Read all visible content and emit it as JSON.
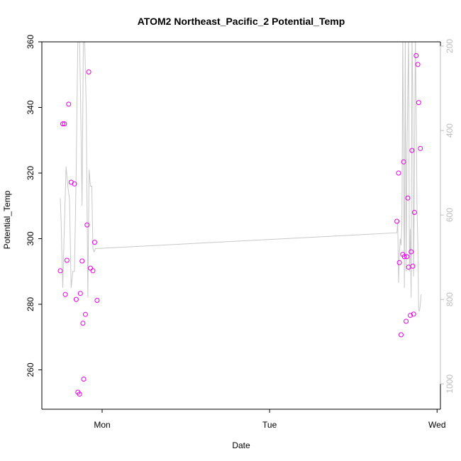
{
  "chart_data": {
    "type": "scatter",
    "title": "ATOM2 Northeast_Pacific_2 Potential_Temp",
    "xlabel": "Date",
    "ylabel": "Potential_Temp",
    "x_ticks": [
      "Mon",
      "Tue",
      "Wed"
    ],
    "ylim": [
      248,
      360
    ],
    "y_ticks": [
      260,
      280,
      300,
      320,
      340,
      360
    ],
    "y2_ticks": [
      200,
      400,
      600,
      800,
      1000
    ],
    "y2lim": [
      190,
      1060
    ],
    "xlim": [
      -0.36,
      2.02
    ],
    "colors": {
      "points": "#e600e6",
      "line": "#c8c8c8",
      "axis": "#000000",
      "right_axis": "#bdbdbd"
    },
    "series": [
      {
        "kind": "points",
        "x": [
          -0.25,
          -0.235,
          -0.225,
          -0.22,
          -0.21,
          -0.2,
          -0.185,
          -0.165,
          -0.155,
          -0.145,
          -0.135,
          -0.13,
          -0.12,
          -0.115,
          -0.11,
          -0.1,
          -0.09,
          -0.08,
          -0.07,
          -0.055,
          -0.045,
          -0.03,
          1.76,
          1.77,
          1.775,
          1.785,
          1.795,
          1.8,
          1.805,
          1.815,
          1.82,
          1.825,
          1.83,
          1.84,
          1.845,
          1.85,
          1.855,
          1.86,
          1.865,
          1.875,
          1.885,
          1.89,
          1.9
        ],
        "y": [
          290.2,
          335,
          335,
          283,
          293.4,
          341,
          317.2,
          316.7,
          281.5,
          253.2,
          252.6,
          283.3,
          293.2,
          274.2,
          257.2,
          276.9,
          304.2,
          350.8,
          291,
          290.2,
          298.9,
          281.2,
          305.3,
          320,
          292.7,
          270.7,
          295.2,
          323.4,
          294.5,
          274.8,
          294.5,
          312.4,
          291.3,
          276.6,
          296,
          326.9,
          291.6,
          277,
          308,
          355.8,
          353.1,
          341.5,
          327.5
        ]
      },
      {
        "kind": "line",
        "x": [
          -0.25,
          -0.245,
          -0.235,
          -0.225,
          -0.215,
          -0.205,
          -0.195,
          -0.185,
          -0.175,
          -0.165,
          -0.155,
          -0.145,
          -0.135,
          -0.128,
          -0.12,
          -0.112,
          -0.105,
          -0.095,
          -0.085,
          -0.078,
          -0.07,
          -0.062,
          -0.055,
          -0.048,
          -0.04,
          -0.03,
          1.76,
          1.765,
          1.77,
          1.775,
          1.78,
          1.785,
          1.79,
          1.795,
          1.8,
          1.805,
          1.81,
          1.815,
          1.82,
          1.825,
          1.83,
          1.835,
          1.84,
          1.845,
          1.85,
          1.855,
          1.86,
          1.865,
          1.87,
          1.875,
          1.88,
          1.885,
          1.89,
          1.895,
          1.9,
          1.905
        ],
        "y": [
          312.3,
          305,
          285,
          305,
          322,
          316,
          312,
          285,
          290,
          290,
          320,
          362,
          362,
          340,
          310,
          362,
          362,
          340,
          282,
          321,
          316,
          316,
          297,
          296,
          297,
          297,
          301.8,
          305,
          286.5,
          295,
          300,
          298,
          305,
          362,
          320,
          285,
          362,
          290,
          325,
          345,
          362,
          290,
          303,
          282,
          362,
          345,
          288.5,
          320,
          362,
          340,
          310,
          298.8,
          278,
          278,
          280,
          283
        ]
      }
    ]
  }
}
